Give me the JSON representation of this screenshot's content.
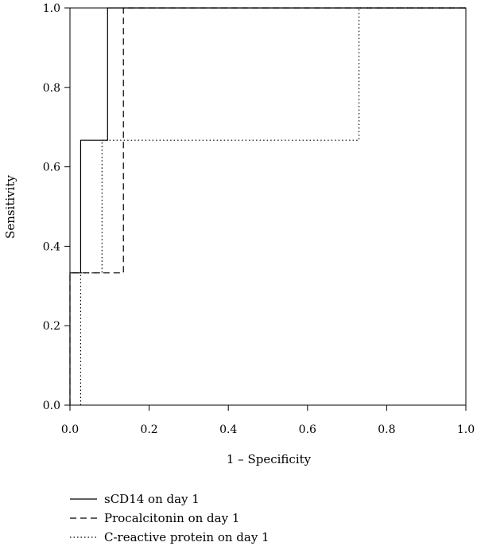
{
  "chart_data": {
    "type": "line",
    "xlabel": "1 – Specificity",
    "ylabel": "Sensitivity",
    "xlim": [
      0,
      1
    ],
    "ylim": [
      0,
      1
    ],
    "x_ticks": [
      "0.0",
      "0.2",
      "0.4",
      "0.6",
      "0.8",
      "1.0"
    ],
    "y_ticks": [
      "0.0",
      "0.2",
      "0.4",
      "0.6",
      "0.8",
      "1.0"
    ],
    "grid": false,
    "legend_position": "bottom-left, below plot",
    "series": [
      {
        "name": "sCD14 on day 1",
        "line_style": "solid",
        "color": "#000000",
        "points": [
          [
            0,
            0
          ],
          [
            0,
            0.333
          ],
          [
            0.027,
            0.333
          ],
          [
            0.027,
            0.667
          ],
          [
            0.095,
            0.667
          ],
          [
            0.095,
            1.0
          ],
          [
            1.0,
            1.0
          ]
        ]
      },
      {
        "name": "Procalcitonin on day 1",
        "line_style": "dashed",
        "color": "#000000",
        "points": [
          [
            0,
            0
          ],
          [
            0,
            0.333
          ],
          [
            0.135,
            0.333
          ],
          [
            0.135,
            1.0
          ],
          [
            1.0,
            1.0
          ]
        ]
      },
      {
        "name": "C-reactive protein on day 1",
        "line_style": "dotted",
        "color": "#000000",
        "points": [
          [
            0.027,
            0
          ],
          [
            0.027,
            0.333
          ],
          [
            0.081,
            0.333
          ],
          [
            0.081,
            0.667
          ],
          [
            0.73,
            0.667
          ],
          [
            0.73,
            1.0
          ],
          [
            1.0,
            1.0
          ]
        ]
      }
    ]
  }
}
